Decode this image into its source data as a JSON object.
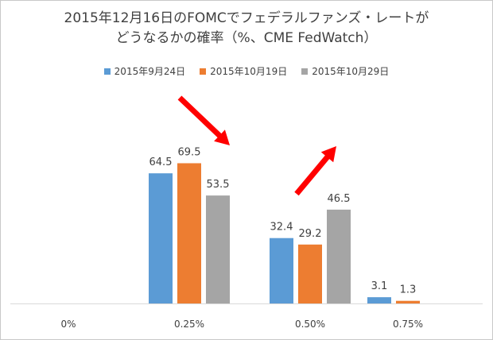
{
  "chart_data": {
    "type": "bar",
    "title_lines": [
      "2015年12月16日のFOMCでフェデラルファンズ・レートが",
      "どうなるかの確率（%、CME FedWatch）"
    ],
    "categories": [
      "0%",
      "0.25%",
      "0.50%",
      "0.75%"
    ],
    "series": [
      {
        "name": "2015年9月24日",
        "color": "#5b9bd5",
        "values": [
          null,
          64.5,
          32.4,
          3.1
        ]
      },
      {
        "name": "2015年10月19日",
        "color": "#ed7d31",
        "values": [
          null,
          69.5,
          29.2,
          1.3
        ]
      },
      {
        "name": "2015年10月29日",
        "color": "#a5a5a5",
        "values": [
          null,
          53.5,
          46.5,
          null
        ]
      }
    ],
    "ylim": [
      0,
      100
    ],
    "grid": false,
    "legend_position": "top",
    "annotations": [
      {
        "shape": "arrow",
        "direction": "down-right",
        "color": "#ff0000"
      },
      {
        "shape": "arrow",
        "direction": "up-right",
        "color": "#ff0000"
      }
    ]
  }
}
